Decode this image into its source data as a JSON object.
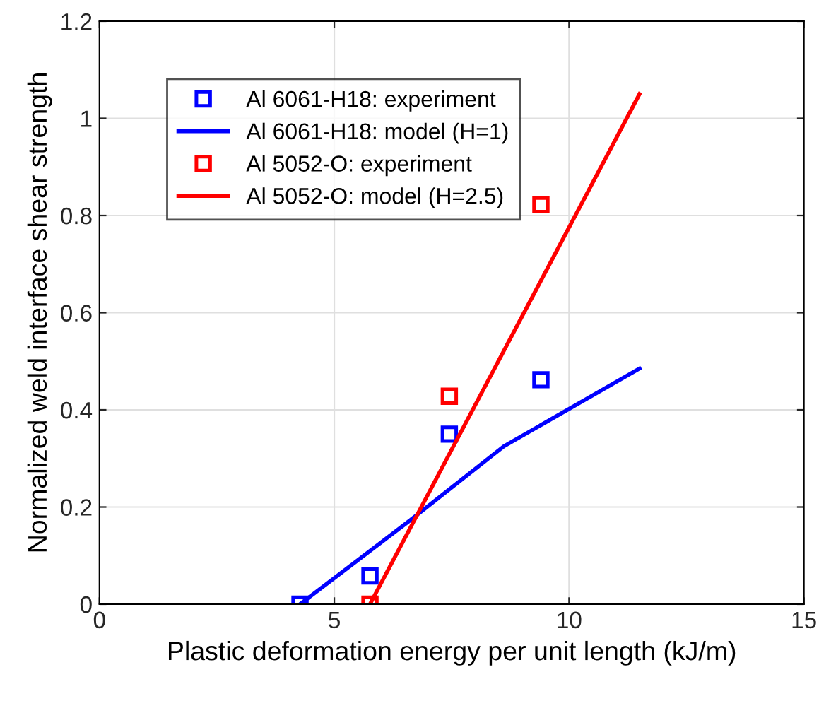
{
  "chart_data": {
    "type": "scatter",
    "xlabel": "Plastic deformation energy per unit length (kJ/m)",
    "ylabel": "Normalized weld interface shear strength",
    "xlim": [
      0,
      15
    ],
    "xticks": [
      0,
      5,
      10,
      15
    ],
    "ylim": [
      0,
      1.2
    ],
    "yticks": [
      0,
      0.2,
      0.4,
      0.6,
      0.8,
      1,
      1.2
    ],
    "grid": true,
    "legend": "top left",
    "series": [
      {
        "name": "Al 6061-H18: experiment",
        "marker": "square",
        "color": "#0000ff",
        "x": [
          4.27,
          5.76,
          7.45,
          9.4
        ],
        "values": [
          0,
          0.058,
          0.35,
          0.462
        ]
      },
      {
        "name": "Al 6061-H18: model (H=1)",
        "type": "line",
        "marker": "none",
        "color": "#0000ff",
        "x": [
          4.27,
          6.62,
          8.61,
          11.5
        ],
        "values": [
          0,
          0.173,
          0.325,
          0.485
        ]
      },
      {
        "name": "Al 5052-O: experiment",
        "marker": "square",
        "color": "#ff0000",
        "x": [
          5.76,
          7.45,
          9.4
        ],
        "values": [
          0,
          0.428,
          0.822
        ]
      },
      {
        "name": "Al 5052-O: model (H=2.5)",
        "type": "line",
        "marker": "none",
        "color": "#ff0000",
        "x": [
          5.76,
          11.5
        ],
        "values": [
          0,
          1.05
        ]
      }
    ]
  }
}
